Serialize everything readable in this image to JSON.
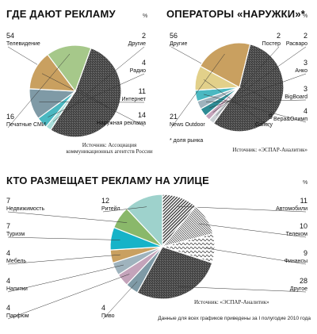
{
  "header": {
    "pct_sign": "%"
  },
  "chart_data": [
    {
      "type": "pie",
      "title": "ГДЕ ДАЮТ РЕКЛАМУ",
      "unit": "%",
      "slices": [
        {
          "label": "Телевидение",
          "value": 54,
          "color": "hatch-dark"
        },
        {
          "label": "Другие",
          "value": 2,
          "color": "#a8ddd8"
        },
        {
          "label": "Радио",
          "value": 4,
          "color": "#4ab8c1"
        },
        {
          "label": "Интернет",
          "value": 11,
          "color": "#7f9aa6"
        },
        {
          "label": "Наружная реклама",
          "value": 14,
          "color": "#c9a060"
        },
        {
          "label": "Печатные СМИ",
          "value": 16,
          "color": "#a6c88a"
        }
      ],
      "source": "Источник: Ассоциация коммуникационных агентств России"
    },
    {
      "type": "pie",
      "title": "ОПЕРАТОРЫ «НАРУЖКИ»*",
      "unit": "%",
      "slices": [
        {
          "label": "Другие",
          "value": 56,
          "color": "hatch-dark"
        },
        {
          "label": "Постер",
          "value": 2,
          "color": "#c9cfd3"
        },
        {
          "label": "Расваро",
          "value": 2,
          "color": "#c4a3ba"
        },
        {
          "label": "Анко",
          "value": 3,
          "color": "#2e8b94"
        },
        {
          "label": "BigBoard",
          "value": 3,
          "color": "#9fb3bd"
        },
        {
          "label": "Вера&Олимп",
          "value": 4,
          "color": "#4ab8c1"
        },
        {
          "label": "Gallery",
          "value": 9,
          "color": "#e2d08a"
        },
        {
          "label": "News Outdoor",
          "value": 21,
          "color": "#c9a060"
        }
      ],
      "footnote": "* доля рынка",
      "source": "Источник: «ЭСПАР-Аналитик»"
    },
    {
      "type": "pie",
      "title": "КТО РАЗМЕЩАЕТ РЕКЛАМУ НА УЛИЦЕ",
      "unit": "%",
      "slices": [
        {
          "label": "Автомобили",
          "value": 11,
          "color": "hatch-diag"
        },
        {
          "label": "Телеком",
          "value": 10,
          "color": "hatch-fine"
        },
        {
          "label": "Финансы",
          "value": 9,
          "color": "hatch-wave"
        },
        {
          "label": "Другое",
          "value": 28,
          "color": "hatch-dark"
        },
        {
          "label": "Пиво",
          "value": 4,
          "color": "#7f9aa6"
        },
        {
          "label": "Парфюм",
          "value": 4,
          "color": "#c4a3ba"
        },
        {
          "label": "Напитки",
          "value": 4,
          "color": "#9fb3bd"
        },
        {
          "label": "Мебель",
          "value": 4,
          "color": "#c9a060"
        },
        {
          "label": "Туризм",
          "value": 7,
          "color": "#17b3c8"
        },
        {
          "label": "Недвижимость",
          "value": 7,
          "color": "#8ab86a"
        },
        {
          "label": "Ритейл",
          "value": 12,
          "color": "#9ed2cc"
        }
      ],
      "source": "Источник: «ЭСПАР-Аналитик»",
      "note": "Данные для всех графиков приведены за I полугодие 2010 года"
    }
  ]
}
